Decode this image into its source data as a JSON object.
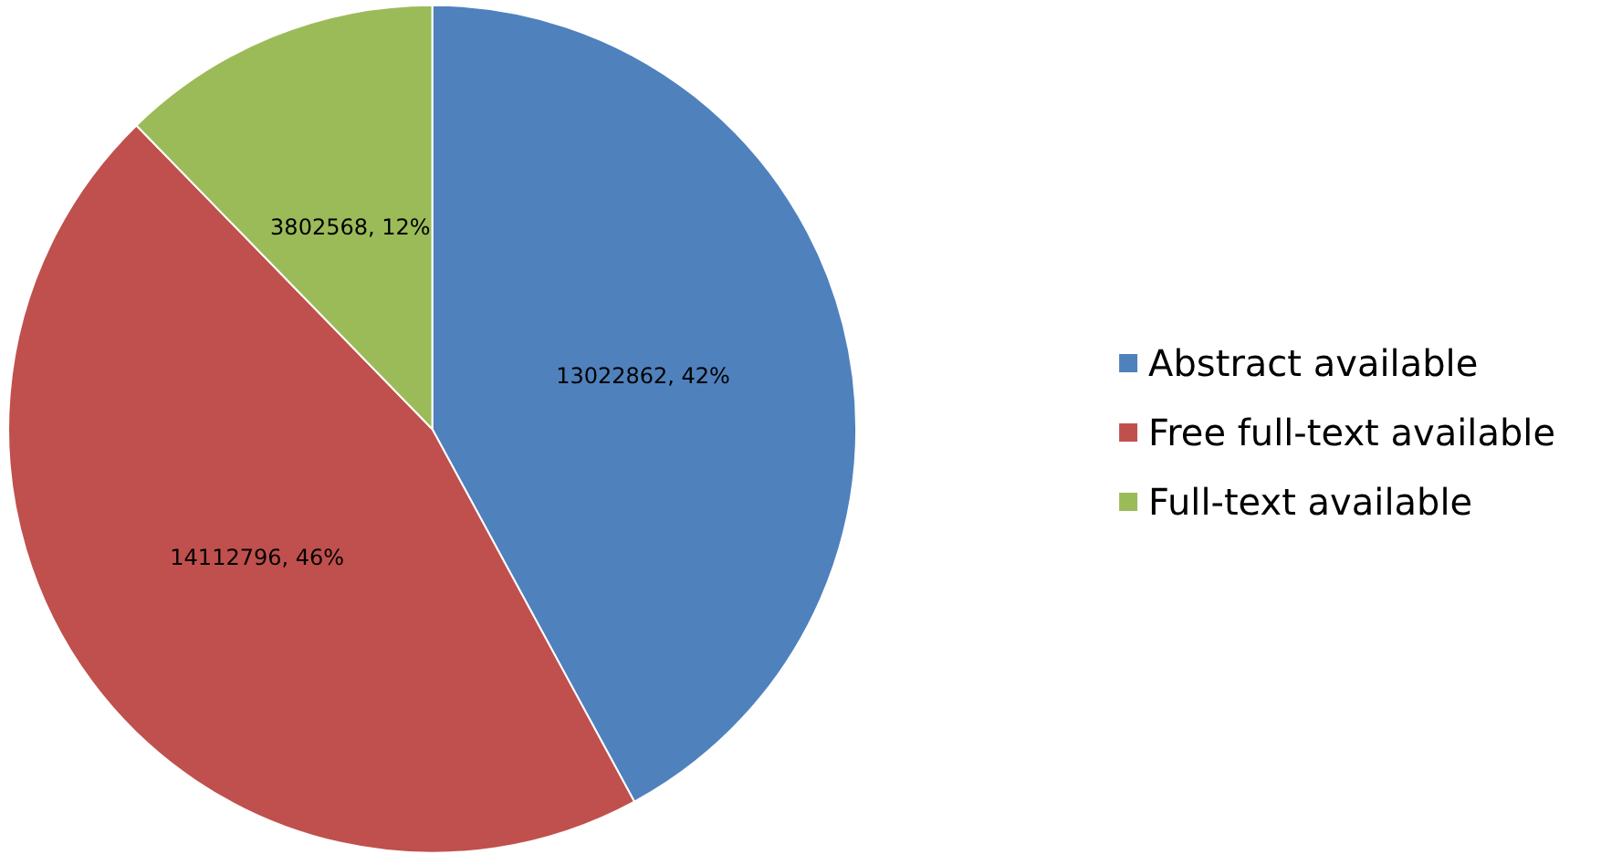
{
  "chart_data": {
    "type": "pie",
    "categories": [
      "Abstract available",
      "Free full-text available",
      "Full-text available"
    ],
    "values": [
      13022862,
      14112796,
      3802568
    ],
    "colors": [
      "#4f81bd",
      "#c0504d",
      "#9bbb59"
    ],
    "value_labels": [
      "13022862, 42%",
      "14112796, 46%",
      "3802568, 12%"
    ],
    "legend": "right"
  }
}
